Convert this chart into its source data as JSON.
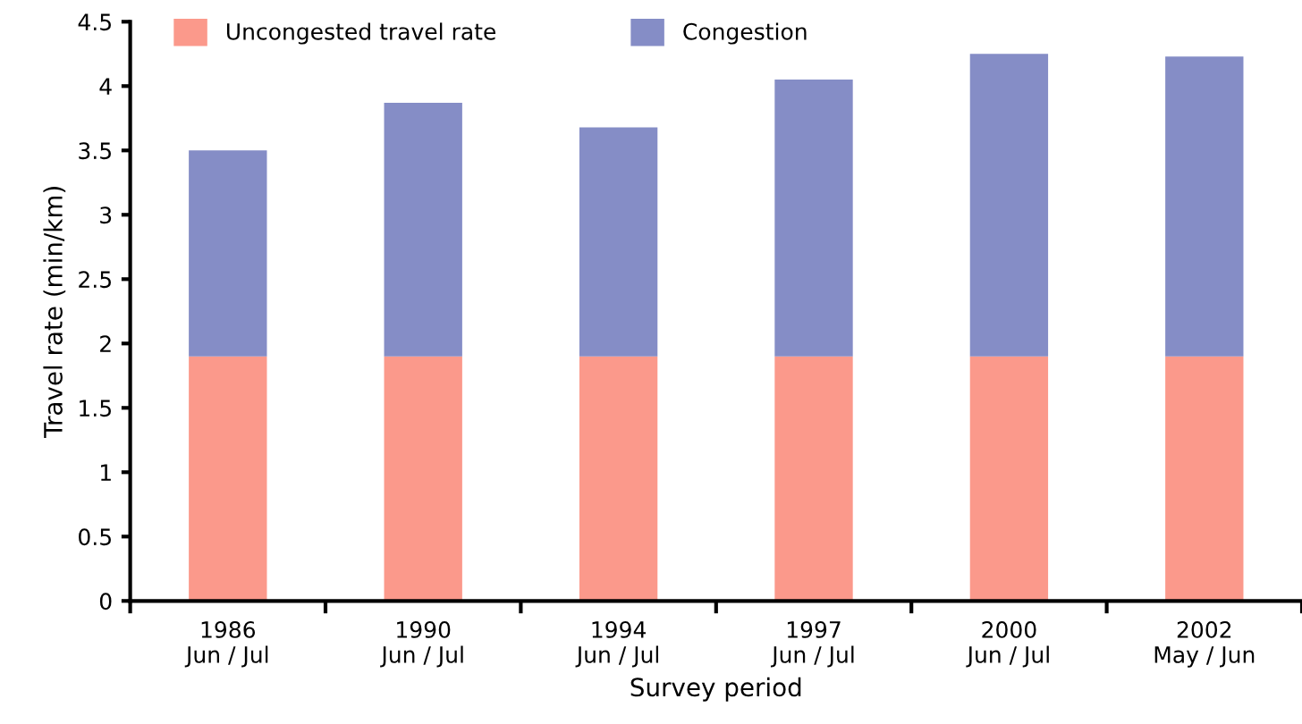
{
  "chart_data": {
    "type": "bar",
    "stacked": true,
    "xlabel": "Survey period",
    "ylabel": "Travel rate (min/km)",
    "categories": [
      "1986\nJun / Jul",
      "1990\nJun / Jul",
      "1994\nJun / Jul",
      "1997\nJun / Jul",
      "2000\nJun / Jul",
      "2002\nMay / Jun"
    ],
    "series": [
      {
        "name": "Uncongested travel rate",
        "color": "#fb998b",
        "values": [
          1.9,
          1.9,
          1.9,
          1.9,
          1.9,
          1.9
        ]
      },
      {
        "name": "Congestion",
        "color": "#858dc6",
        "values": [
          1.6,
          1.97,
          1.78,
          2.15,
          2.35,
          2.33
        ]
      }
    ],
    "ylim": [
      0,
      4.5
    ],
    "yticks": [
      0,
      0.5,
      1,
      1.5,
      2,
      2.5,
      3,
      3.5,
      4,
      4.5
    ],
    "grid": false,
    "legend": "top"
  }
}
